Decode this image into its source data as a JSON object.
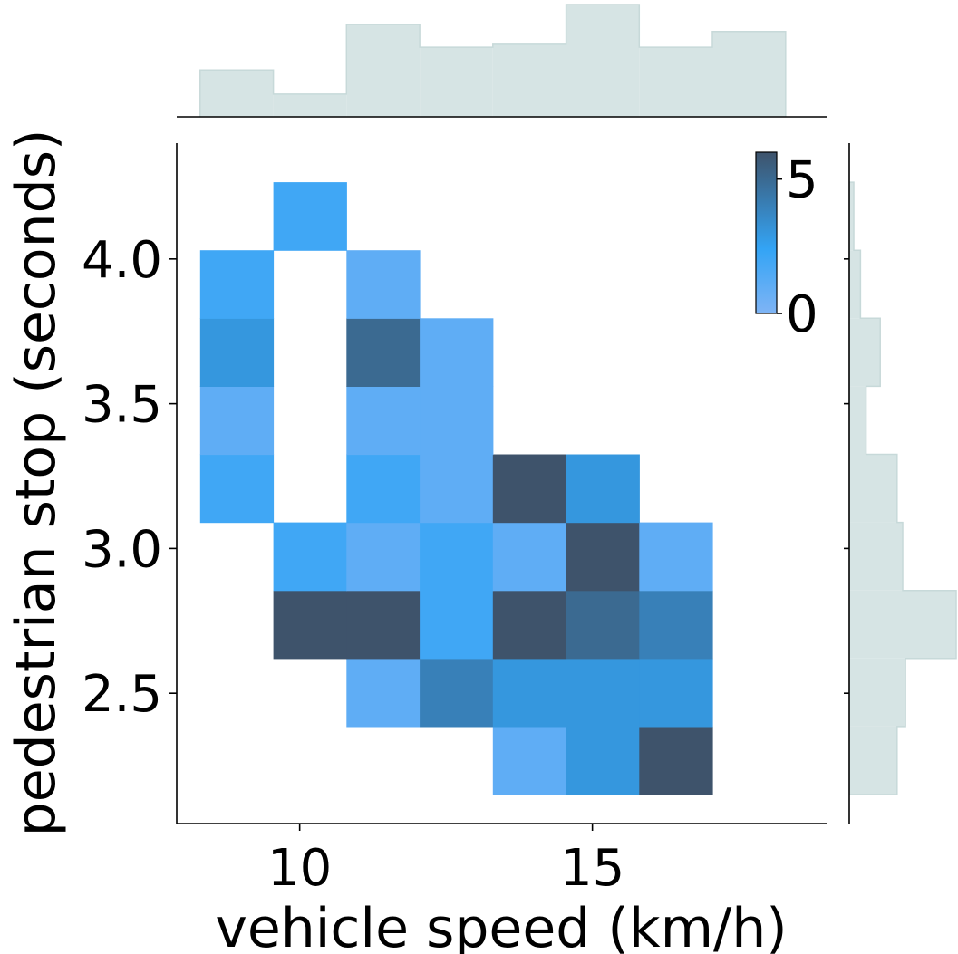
{
  "chart_data": {
    "type": "heatmap",
    "title": "",
    "xlabel": "vehicle speed (km/h)",
    "ylabel": "pedestrian stop (seconds)",
    "xlim": [
      7.9,
      19.0
    ],
    "ylim": [
      2.05,
      4.4
    ],
    "xticks": [
      10,
      15
    ],
    "xtick_labels": [
      "10",
      "15"
    ],
    "yticks": [
      2.5,
      3.0,
      3.5,
      4.0
    ],
    "ytick_labels": [
      "2.5",
      "3.0",
      "3.5",
      "4.0"
    ],
    "x_bin_edges": [
      8.3,
      9.55,
      10.8,
      12.05,
      13.3,
      14.55,
      15.8,
      17.05,
      18.3
    ],
    "y_bin_edges": [
      2.15,
      2.385,
      2.62,
      2.855,
      3.09,
      3.325,
      3.56,
      3.795,
      4.03,
      4.265
    ],
    "counts": [
      [
        null,
        null,
        null,
        null,
        1,
        3,
        6,
        null
      ],
      [
        null,
        null,
        1,
        4,
        3,
        3,
        3,
        null
      ],
      [
        null,
        6,
        6,
        2,
        6,
        5,
        4,
        null
      ],
      [
        null,
        2,
        1,
        2,
        1,
        6,
        1,
        null
      ],
      [
        2,
        null,
        2,
        1,
        6,
        3,
        null,
        null
      ],
      [
        1,
        null,
        1,
        1,
        null,
        null,
        null,
        null
      ],
      [
        3,
        null,
        5,
        1,
        null,
        null,
        null,
        null
      ],
      [
        2,
        null,
        1,
        null,
        null,
        null,
        null,
        null
      ],
      [
        null,
        2,
        null,
        null,
        null,
        null,
        null,
        null
      ]
    ],
    "colorbar": {
      "ticks": [
        0,
        5
      ],
      "tick_labels": [
        "0",
        "5"
      ],
      "vmin": 0,
      "vmax": 6
    },
    "colors": {
      "low": "#7fb4f5",
      "mid": "#33a4f5",
      "high": "#3e536b",
      "marginal": "#d6e4e4"
    },
    "x_marginal": {
      "bin_edges": [
        8.3,
        9.55,
        10.8,
        12.05,
        13.3,
        14.55,
        15.8,
        17.05,
        18.3
      ],
      "heights": [
        0.66,
        0.32,
        1.3,
        0.98,
        1.02,
        1.58,
        0.98,
        1.2
      ]
    },
    "y_marginal": {
      "bin_edges": [
        2.15,
        2.385,
        2.62,
        2.855,
        3.09,
        3.325,
        3.56,
        3.795,
        4.03,
        4.265
      ],
      "heights": [
        0.85,
        1.0,
        1.9,
        0.95,
        0.85,
        0.3,
        0.55,
        0.2,
        0.08
      ]
    }
  }
}
